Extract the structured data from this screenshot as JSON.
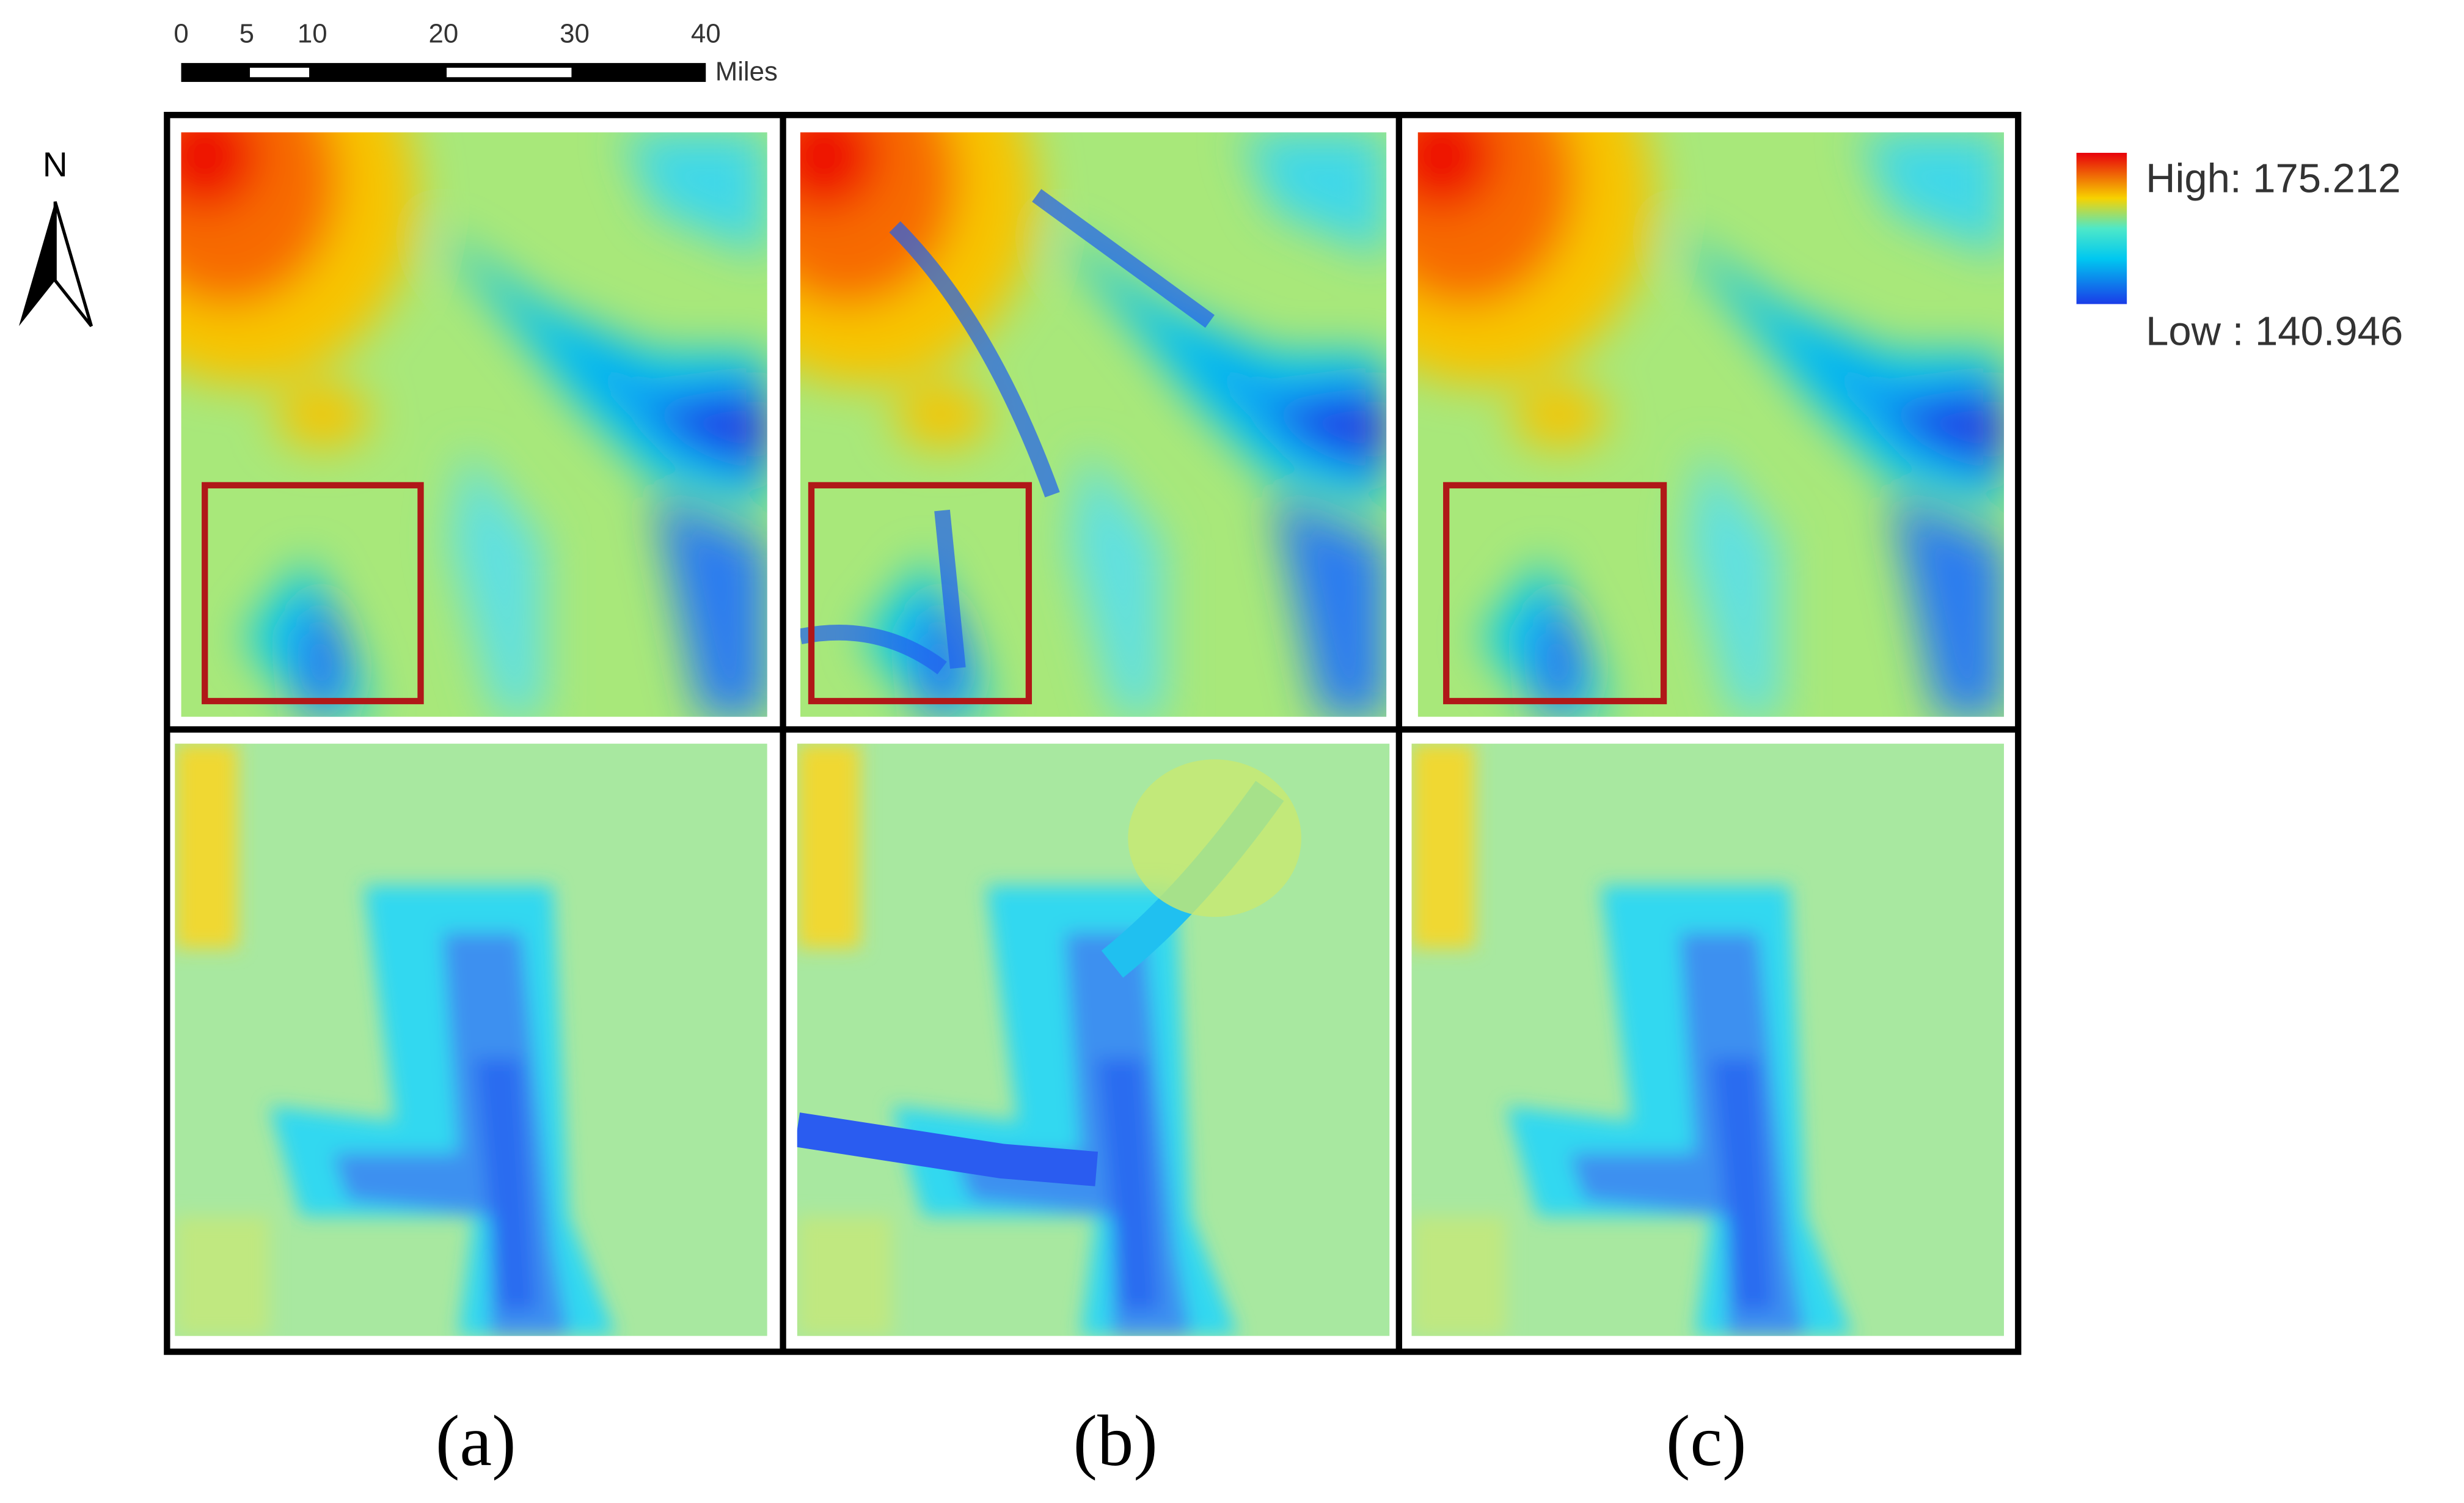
{
  "scale_bar": {
    "ticks": [
      0,
      5,
      10,
      20,
      30,
      40
    ],
    "unit": "Miles"
  },
  "north_arrow": {
    "label": "N"
  },
  "legend": {
    "high": "High: 175.212",
    "low": "Low : 140.946"
  },
  "panels": [
    {
      "label": "(a)"
    },
    {
      "label": "(b)"
    },
    {
      "label": "(c)"
    }
  ]
}
